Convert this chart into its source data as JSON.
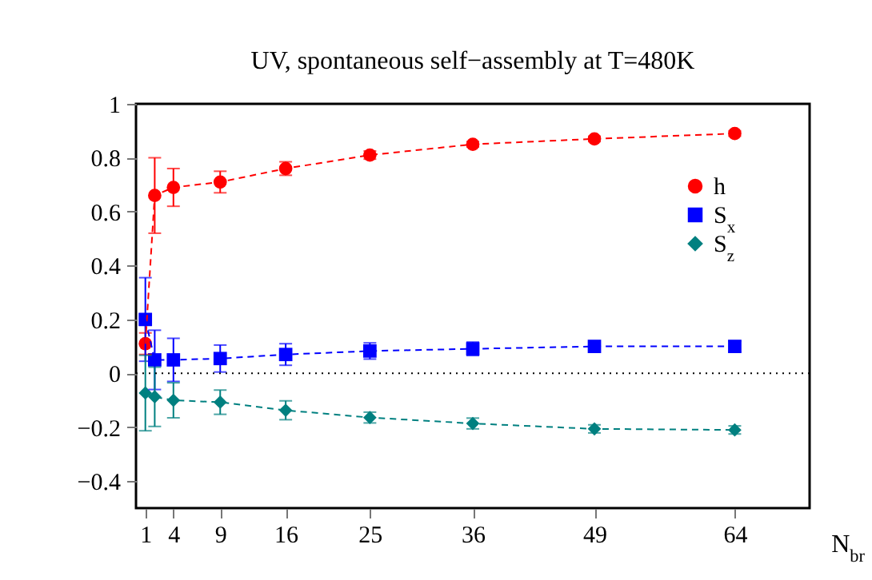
{
  "chart_data": {
    "type": "line",
    "title": "UV, spontaneous self−assembly at T=480K",
    "xlabel": "N$_{br}$",
    "x": [
      1,
      2,
      4,
      9,
      16,
      25,
      36,
      49,
      64
    ],
    "xlim": [
      0,
      72
    ],
    "xticks": [
      1,
      4,
      9,
      16,
      25,
      36,
      49,
      64
    ],
    "ylim": [
      -0.5,
      1
    ],
    "yticks": [
      -0.4,
      -0.2,
      0,
      0.2,
      0.4,
      0.6,
      0.8,
      1
    ],
    "series": [
      {
        "name": "h",
        "color": "#ff0000",
        "marker": "circle",
        "values": [
          0.11,
          0.66,
          0.69,
          0.71,
          0.76,
          0.81,
          0.85,
          0.87,
          0.89
        ],
        "errors": [
          0.04,
          0.14,
          0.07,
          0.04,
          0.025,
          0.015,
          0.01,
          0.01,
          0.01
        ]
      },
      {
        "name": "S$_{x}$",
        "color": "#0000ff",
        "marker": "square",
        "values": [
          0.2,
          0.05,
          0.05,
          0.055,
          0.07,
          0.083,
          0.091,
          0.1,
          0.1
        ],
        "errors": [
          0.155,
          0.11,
          0.08,
          0.05,
          0.04,
          0.03,
          0.025,
          0.02,
          0.02
        ]
      },
      {
        "name": "S$_{z}$",
        "color": "#008080",
        "marker": "diamond",
        "values": [
          -0.073,
          -0.087,
          -0.1,
          -0.107,
          -0.137,
          -0.164,
          -0.186,
          -0.206,
          -0.21
        ],
        "errors": [
          0.14,
          0.11,
          0.065,
          0.045,
          0.035,
          0.02,
          0.02,
          0.015,
          0.015
        ]
      }
    ],
    "ref_lines": [
      {
        "axis": "y",
        "value": 0,
        "color": "#000000",
        "line_style": "dotted"
      }
    ],
    "line_style": "dashed",
    "legend": "top right",
    "grid": false
  }
}
